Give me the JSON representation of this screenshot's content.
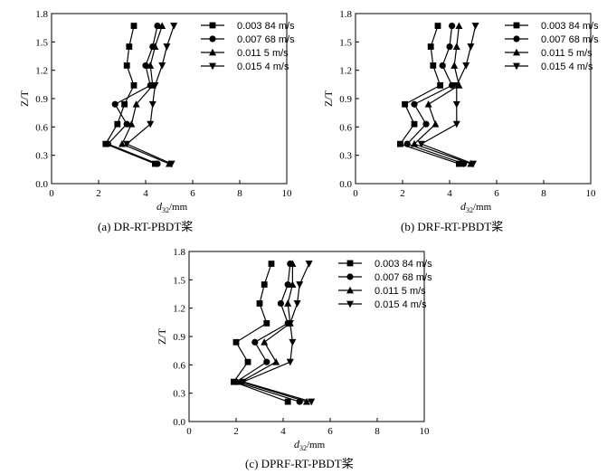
{
  "chart_data": [
    {
      "type": "line",
      "caption": "(a) DR-RT-PBDT桨",
      "xlabel_main": "d",
      "xlabel_sub": "32",
      "xlabel_unit": "/mm",
      "ylabel": "Z/T",
      "xlim": [
        0,
        10
      ],
      "ylim": [
        0,
        1.8
      ],
      "xticks": [
        0,
        2,
        4,
        6,
        8,
        10
      ],
      "yticks": [
        0.0,
        0.3,
        0.6,
        0.9,
        1.2,
        1.5,
        1.8
      ],
      "xtick_labels": [
        "0",
        "2",
        "4",
        "6",
        "8",
        "10"
      ],
      "ytick_labels": [
        "0.0",
        "0.3",
        "0.6",
        "0.9",
        "1.2",
        "1.5",
        "1.8"
      ],
      "legend_position": "top-right",
      "series": [
        {
          "name": "0.003 84 m/s",
          "marker": "square",
          "points": [
            [
              3.5,
              1.67
            ],
            [
              3.3,
              1.45
            ],
            [
              3.2,
              1.25
            ],
            [
              3.5,
              1.04
            ],
            [
              3.1,
              0.84
            ],
            [
              2.8,
              0.63
            ],
            [
              2.3,
              0.42
            ],
            [
              4.4,
              0.21
            ]
          ]
        },
        {
          "name": "0.007 68 m/s",
          "marker": "circle",
          "points": [
            [
              4.5,
              1.67
            ],
            [
              4.3,
              1.45
            ],
            [
              4.0,
              1.25
            ],
            [
              4.2,
              1.04
            ],
            [
              2.7,
              0.84
            ],
            [
              3.2,
              0.63
            ],
            [
              2.4,
              0.42
            ],
            [
              4.5,
              0.21
            ]
          ]
        },
        {
          "name": "0.011 5 m/s",
          "marker": "triangle-up",
          "points": [
            [
              4.7,
              1.67
            ],
            [
              4.4,
              1.45
            ],
            [
              4.2,
              1.25
            ],
            [
              4.3,
              1.04
            ],
            [
              3.6,
              0.84
            ],
            [
              3.4,
              0.63
            ],
            [
              3.0,
              0.42
            ],
            [
              5.0,
              0.21
            ]
          ]
        },
        {
          "name": "0.015 4 m/s",
          "marker": "triangle-down",
          "points": [
            [
              5.2,
              1.67
            ],
            [
              4.9,
              1.45
            ],
            [
              4.7,
              1.25
            ],
            [
              4.4,
              1.04
            ],
            [
              4.3,
              0.84
            ],
            [
              4.2,
              0.63
            ],
            [
              3.2,
              0.42
            ],
            [
              5.1,
              0.21
            ]
          ]
        }
      ]
    },
    {
      "type": "line",
      "caption": "(b) DRF-RT-PBDT桨",
      "xlabel_main": "d",
      "xlabel_sub": "32",
      "xlabel_unit": "/mm",
      "ylabel": "Z/T",
      "xlim": [
        0,
        10
      ],
      "ylim": [
        0,
        1.8
      ],
      "xticks": [
        0,
        2,
        4,
        6,
        8,
        10
      ],
      "yticks": [
        0.0,
        0.3,
        0.6,
        0.9,
        1.2,
        1.5,
        1.8
      ],
      "xtick_labels": [
        "0",
        "2",
        "4",
        "6",
        "8",
        "10"
      ],
      "ytick_labels": [
        "0.0",
        "0.3",
        "0.6",
        "0.9",
        "1.2",
        "1.5",
        "1.8"
      ],
      "legend_position": "top-right",
      "series": [
        {
          "name": "0.003 84 m/s",
          "marker": "square",
          "points": [
            [
              3.5,
              1.67
            ],
            [
              3.2,
              1.45
            ],
            [
              3.3,
              1.25
            ],
            [
              3.6,
              1.04
            ],
            [
              2.1,
              0.84
            ],
            [
              2.5,
              0.63
            ],
            [
              1.9,
              0.42
            ],
            [
              4.4,
              0.21
            ]
          ]
        },
        {
          "name": "0.007 68 m/s",
          "marker": "circle",
          "points": [
            [
              4.1,
              1.67
            ],
            [
              4.0,
              1.45
            ],
            [
              3.7,
              1.25
            ],
            [
              4.1,
              1.04
            ],
            [
              2.5,
              0.84
            ],
            [
              3.0,
              0.63
            ],
            [
              2.2,
              0.42
            ],
            [
              4.6,
              0.21
            ]
          ]
        },
        {
          "name": "0.011 5 m/s",
          "marker": "triangle-up",
          "points": [
            [
              4.4,
              1.67
            ],
            [
              4.3,
              1.45
            ],
            [
              4.2,
              1.25
            ],
            [
              4.4,
              1.04
            ],
            [
              3.1,
              0.84
            ],
            [
              3.4,
              0.63
            ],
            [
              2.5,
              0.42
            ],
            [
              4.9,
              0.21
            ]
          ]
        },
        {
          "name": "0.015 4 m/s",
          "marker": "triangle-down",
          "points": [
            [
              5.1,
              1.67
            ],
            [
              4.9,
              1.45
            ],
            [
              4.7,
              1.25
            ],
            [
              4.3,
              1.04
            ],
            [
              4.3,
              0.84
            ],
            [
              4.3,
              0.63
            ],
            [
              2.8,
              0.42
            ],
            [
              5.0,
              0.21
            ]
          ]
        }
      ]
    },
    {
      "type": "line",
      "caption": "(c) DPRF-RT-PBDT桨",
      "xlabel_main": "d",
      "xlabel_sub": "32",
      "xlabel_unit": "/mm",
      "ylabel": "Z/T",
      "xlim": [
        0,
        10
      ],
      "ylim": [
        0,
        1.8
      ],
      "xticks": [
        0,
        2,
        4,
        6,
        8,
        10
      ],
      "yticks": [
        0.0,
        0.3,
        0.6,
        0.9,
        1.2,
        1.5,
        1.8
      ],
      "xtick_labels": [
        "0",
        "2",
        "4",
        "6",
        "8",
        "10"
      ],
      "ytick_labels": [
        "0.0",
        "0.3",
        "0.6",
        "0.9",
        "1.2",
        "1.5",
        "1.8"
      ],
      "legend_position": "top-right",
      "series": [
        {
          "name": "0.003 84 m/s",
          "marker": "square",
          "points": [
            [
              3.5,
              1.67
            ],
            [
              3.2,
              1.45
            ],
            [
              3.0,
              1.25
            ],
            [
              3.3,
              1.04
            ],
            [
              2.0,
              0.84
            ],
            [
              2.5,
              0.63
            ],
            [
              1.9,
              0.42
            ],
            [
              4.2,
              0.21
            ]
          ]
        },
        {
          "name": "0.007 68 m/s",
          "marker": "circle",
          "points": [
            [
              4.3,
              1.67
            ],
            [
              4.2,
              1.45
            ],
            [
              3.9,
              1.25
            ],
            [
              4.2,
              1.04
            ],
            [
              2.8,
              0.84
            ],
            [
              3.3,
              0.63
            ],
            [
              2.0,
              0.42
            ],
            [
              4.7,
              0.21
            ]
          ]
        },
        {
          "name": "0.011 5 m/s",
          "marker": "triangle-up",
          "points": [
            [
              4.4,
              1.67
            ],
            [
              4.4,
              1.45
            ],
            [
              4.2,
              1.25
            ],
            [
              4.3,
              1.04
            ],
            [
              3.2,
              0.84
            ],
            [
              3.7,
              0.63
            ],
            [
              2.2,
              0.42
            ],
            [
              5.0,
              0.21
            ]
          ]
        },
        {
          "name": "0.015 4 m/s",
          "marker": "triangle-down",
          "points": [
            [
              5.1,
              1.67
            ],
            [
              4.7,
              1.45
            ],
            [
              4.6,
              1.25
            ],
            [
              4.3,
              1.04
            ],
            [
              4.4,
              0.84
            ],
            [
              4.3,
              0.63
            ],
            [
              2.3,
              0.42
            ],
            [
              5.2,
              0.21
            ]
          ]
        }
      ]
    }
  ]
}
